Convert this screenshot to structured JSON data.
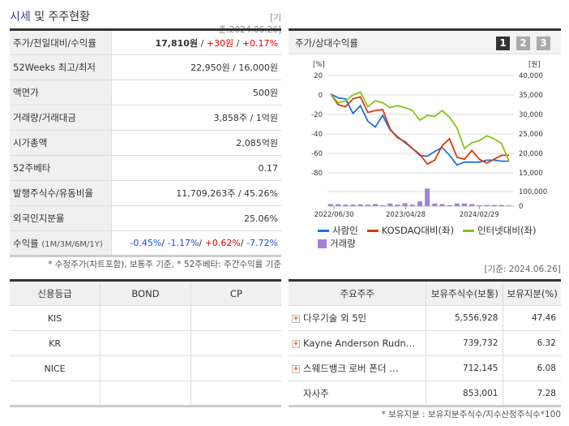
{
  "header": {
    "title_a": "시세",
    "title_b": " 및 주주현황",
    "date": "[기준:2024.06.26]"
  },
  "quote": [
    {
      "label": "주가/전일대비/수익률",
      "price": "17,810원",
      "sep": " / ",
      "change": "+30원",
      "change_pct": "+0.17%"
    },
    {
      "label": "52Weeks 최고/최저",
      "value": "22,950원 / 16,000원"
    },
    {
      "label": "액면가",
      "value": "500원"
    },
    {
      "label": "거래량/거래대금",
      "value": "3,858주 / 1억원"
    },
    {
      "label": "시가총액",
      "value": "2,085억원"
    },
    {
      "label": "52주베타",
      "value": "0.17"
    },
    {
      "label": "발행주식수/유동비율",
      "value": "11,709,263주 / 45.26%"
    },
    {
      "label": "외국인지분율",
      "value": "25.06%"
    },
    {
      "label": "수익률",
      "sub": "(1M/3M/6M/1Y)",
      "r1": "-0.45%",
      "r2": "-1.17%",
      "r3": "+0.62%",
      "r4": "-7.72%"
    }
  ],
  "quote_note": "* 수정주가(차트포함), 보통주 기준, * 52주베타: 주간수익률 기준",
  "chart_panel": {
    "title": "주가/상대수익률",
    "pages": [
      "1",
      "2",
      "3"
    ],
    "active_page": "1"
  },
  "chart_data": {
    "type": "line",
    "left_unit": "[%]",
    "right_unit": "[원]",
    "left_ticks": [
      "20",
      "0",
      "-20",
      "-40",
      "-60",
      "-80"
    ],
    "right_ticks": [
      "40,000",
      "35,000",
      "30,000",
      "25,000",
      "20,000",
      "15,000"
    ],
    "volume_ticks": [
      "100,000",
      "0"
    ],
    "ylim_left": [
      -80,
      20
    ],
    "ylim_right": [
      15000,
      40000
    ],
    "x_ticks": [
      "2022/06/30",
      "2023/04/28",
      "2024/02/29"
    ],
    "series": [
      {
        "name": "사람인",
        "color": "#1f6fe0",
        "values": [
          1,
          -3,
          -4,
          -19,
          -11,
          -27,
          -33,
          -21,
          -36,
          -43,
          -49,
          -55,
          -62,
          -63,
          -58,
          -54,
          -62,
          -72,
          -69,
          -69,
          -69,
          -67,
          -67,
          -68,
          -68
        ]
      },
      {
        "name": "KOSDAQ대비(좌)",
        "color": "#d83a0a",
        "values": [
          1,
          -10,
          -12,
          -4,
          -2,
          -18,
          -16,
          -15,
          -35,
          -44,
          -48,
          -55,
          -61,
          -71,
          -67,
          -52,
          -45,
          -64,
          -66,
          -57,
          -66,
          -70,
          -66,
          -62,
          -62
        ]
      },
      {
        "name": "인터넷대비(좌)",
        "color": "#88c21a",
        "values": [
          1,
          -8,
          -6,
          0,
          3,
          -12,
          -6,
          -8,
          -13,
          -11,
          -13,
          -16,
          -26,
          -21,
          -22,
          -16,
          -23,
          -34,
          -55,
          -49,
          -47,
          -42,
          -45,
          -50,
          -68
        ]
      }
    ],
    "volume": {
      "name": "거래량",
      "color": "#a57fdc",
      "values": [
        14000,
        14000,
        10000,
        10000,
        12000,
        10000,
        14000,
        6000,
        18000,
        10000,
        20000,
        10000,
        32000,
        120000,
        18000,
        14000,
        6000,
        18000,
        18000,
        14000,
        6000,
        8000,
        8000,
        8000,
        4000
      ]
    },
    "grid": true,
    "legend": "bottom"
  },
  "date2": "[기준: 2024.06.26]",
  "credit": {
    "headers": [
      "신용등급",
      "BOND",
      "CP"
    ],
    "rows": [
      [
        "KIS",
        "",
        ""
      ],
      [
        "KR",
        "",
        ""
      ],
      [
        "NICE",
        "",
        ""
      ],
      [
        "",
        "",
        ""
      ]
    ]
  },
  "holders": {
    "headers": [
      "주요주주",
      "보유주식수(보통)",
      "보유지분(%)"
    ],
    "rows": [
      {
        "name": "다우기술 외 5인",
        "shares": "5,556,928",
        "pct": "47.46",
        "expand": true
      },
      {
        "name": "Kayne Anderson Rudn…",
        "shares": "739,732",
        "pct": "6.32",
        "expand": true
      },
      {
        "name": "스웨드뱅크 로버 폰더 …",
        "shares": "712,145",
        "pct": "6.08",
        "expand": true
      },
      {
        "name": "자사주",
        "shares": "853,001",
        "pct": "7.28",
        "expand": false
      }
    ]
  },
  "holders_note": "* 보유지분 : 보유지분주식수/지수산정주식수*100"
}
